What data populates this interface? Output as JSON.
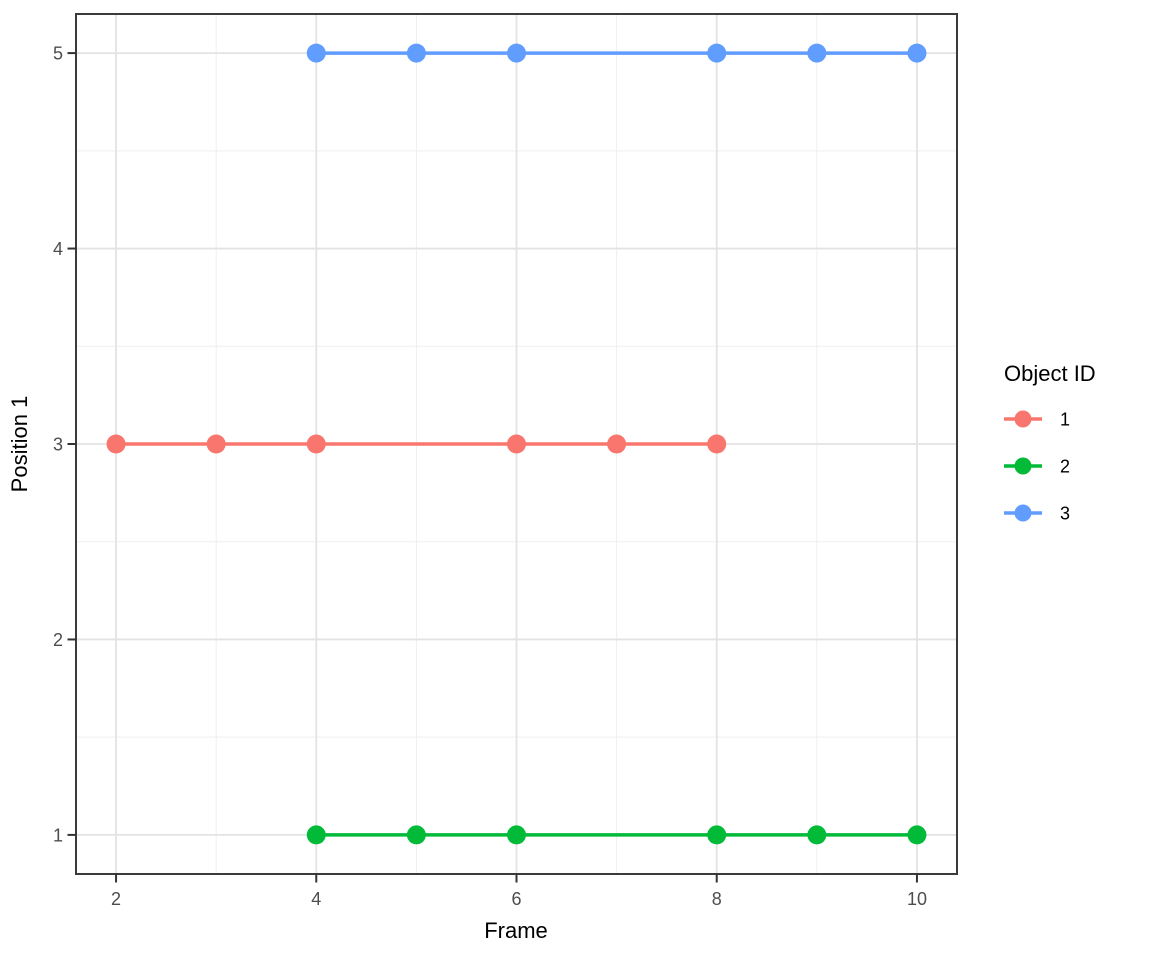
{
  "chart_data": {
    "type": "line",
    "title": "",
    "xlabel": "Frame",
    "ylabel": "Position 1",
    "x_ticks": [
      2,
      4,
      6,
      8,
      10
    ],
    "x_minor_ticks": [
      3,
      5,
      7,
      9
    ],
    "y_ticks": [
      1,
      2,
      3,
      4,
      5
    ],
    "y_minor_ticks": [
      1.5,
      2.5,
      3.5,
      4.5
    ],
    "xlim": [
      1.6,
      10.4
    ],
    "ylim": [
      0.8,
      5.2
    ],
    "grid": true,
    "legend": {
      "title": "Object ID",
      "position": "right",
      "entries": [
        "1",
        "2",
        "3"
      ]
    },
    "series": [
      {
        "name": "1",
        "color": "#F8766D",
        "y_level": 3,
        "x": [
          2,
          3,
          4,
          6,
          7,
          8
        ],
        "y": [
          3,
          3,
          3,
          3,
          3,
          3
        ]
      },
      {
        "name": "2",
        "color": "#00BA38",
        "y_level": 1,
        "x": [
          4,
          5,
          6,
          8,
          9,
          10
        ],
        "y": [
          1,
          1,
          1,
          1,
          1,
          1
        ]
      },
      {
        "name": "3",
        "color": "#619CFF",
        "y_level": 5,
        "x": [
          4,
          5,
          6,
          8,
          9,
          10
        ],
        "y": [
          5,
          5,
          5,
          5,
          5,
          5
        ]
      }
    ]
  },
  "theme": {
    "background": "#FFFFFF",
    "panel_background": "#FFFFFF",
    "panel_border": "#3B3B3B",
    "grid_major": "#E3E3E3",
    "grid_minor": "#EFEFEF",
    "tick_mark": "#333333",
    "tick_label_color": "#4D4D4D",
    "axis_title_color": "#000000",
    "legend_text_color": "#000000"
  }
}
